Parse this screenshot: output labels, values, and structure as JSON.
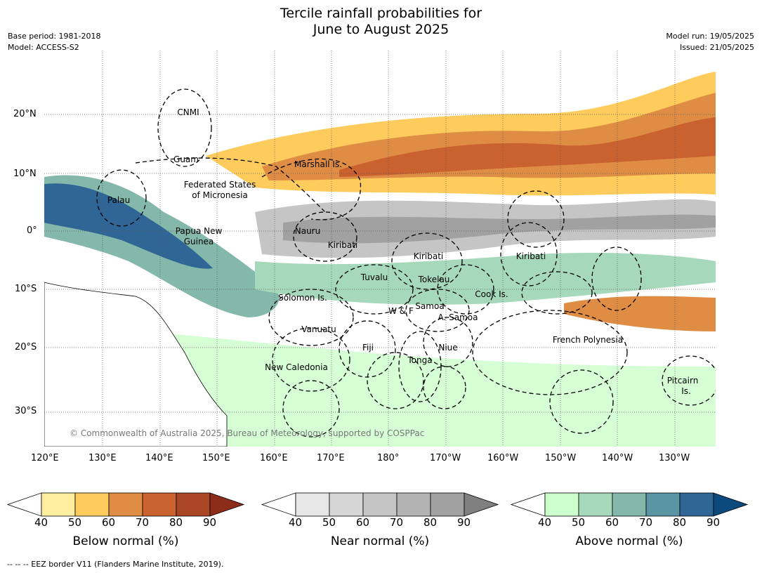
{
  "title_line1": "Tercile rainfall probabilities for",
  "title_line2": "June to August 2025",
  "base_period": "Base period: 1981-2018",
  "model": "Model: ACCESS-S2",
  "model_run": "Model run: 19/05/2025",
  "issued": "Issued: 21/05/2025",
  "lon_ticks": [
    "120°E",
    "130°E",
    "140°E",
    "150°E",
    "160°E",
    "170°E",
    "180°",
    "170°W",
    "160°W",
    "150°W",
    "140°W",
    "130°W"
  ],
  "lat_ticks": [
    "20°N",
    "10°N",
    "0°",
    "10°S",
    "20°S",
    "30°S"
  ],
  "places": [
    "CNMI",
    "Guam",
    "Marshall Is.",
    "Federated States",
    "of Micronesia",
    "Palau",
    "Papua New",
    "Guinea",
    "Nauru",
    "Kiribati",
    "Kiribati",
    "Kiribati",
    "Tuvalu",
    "Tokelau",
    "Cook Is.",
    "Solomon Is.",
    "W & F",
    "Samoa",
    "A. Samoa",
    "Vanuatu",
    "Fiji",
    "Niue",
    "Tonga",
    "French Polynesia",
    "New Caledonia",
    "Pitcairn",
    "Is."
  ],
  "copyright": "© Commonwealth of Australia 2025, Bureau of Meteorology, supported by COSPPac",
  "colorbars": [
    {
      "title": "Below normal (%)",
      "ticks": [
        "40",
        "50",
        "60",
        "70",
        "80",
        "90"
      ],
      "colors": [
        "#ffffff",
        "#ffeda0",
        "#fecc5c",
        "#df8d44",
        "#c9622f",
        "#a84625",
        "#8c2d1a"
      ]
    },
    {
      "title": "Near normal (%)",
      "ticks": [
        "40",
        "50",
        "60",
        "70",
        "80",
        "90"
      ],
      "colors": [
        "#ffffff",
        "#e6e6e6",
        "#d6d6d6",
        "#c5c5c5",
        "#b3b3b3",
        "#a1a1a1",
        "#808080"
      ]
    },
    {
      "title": "Above normal (%)",
      "ticks": [
        "40",
        "50",
        "60",
        "70",
        "80",
        "90"
      ],
      "colors": [
        "#ffffff",
        "#ccffcc",
        "#a6d8bb",
        "#84b8aa",
        "#5a95a3",
        "#2f6695",
        "#0c4a7e"
      ]
    }
  ],
  "footnote": "--  --  -- EEZ border V11 (Flanders Marine Institute, 2019)."
}
